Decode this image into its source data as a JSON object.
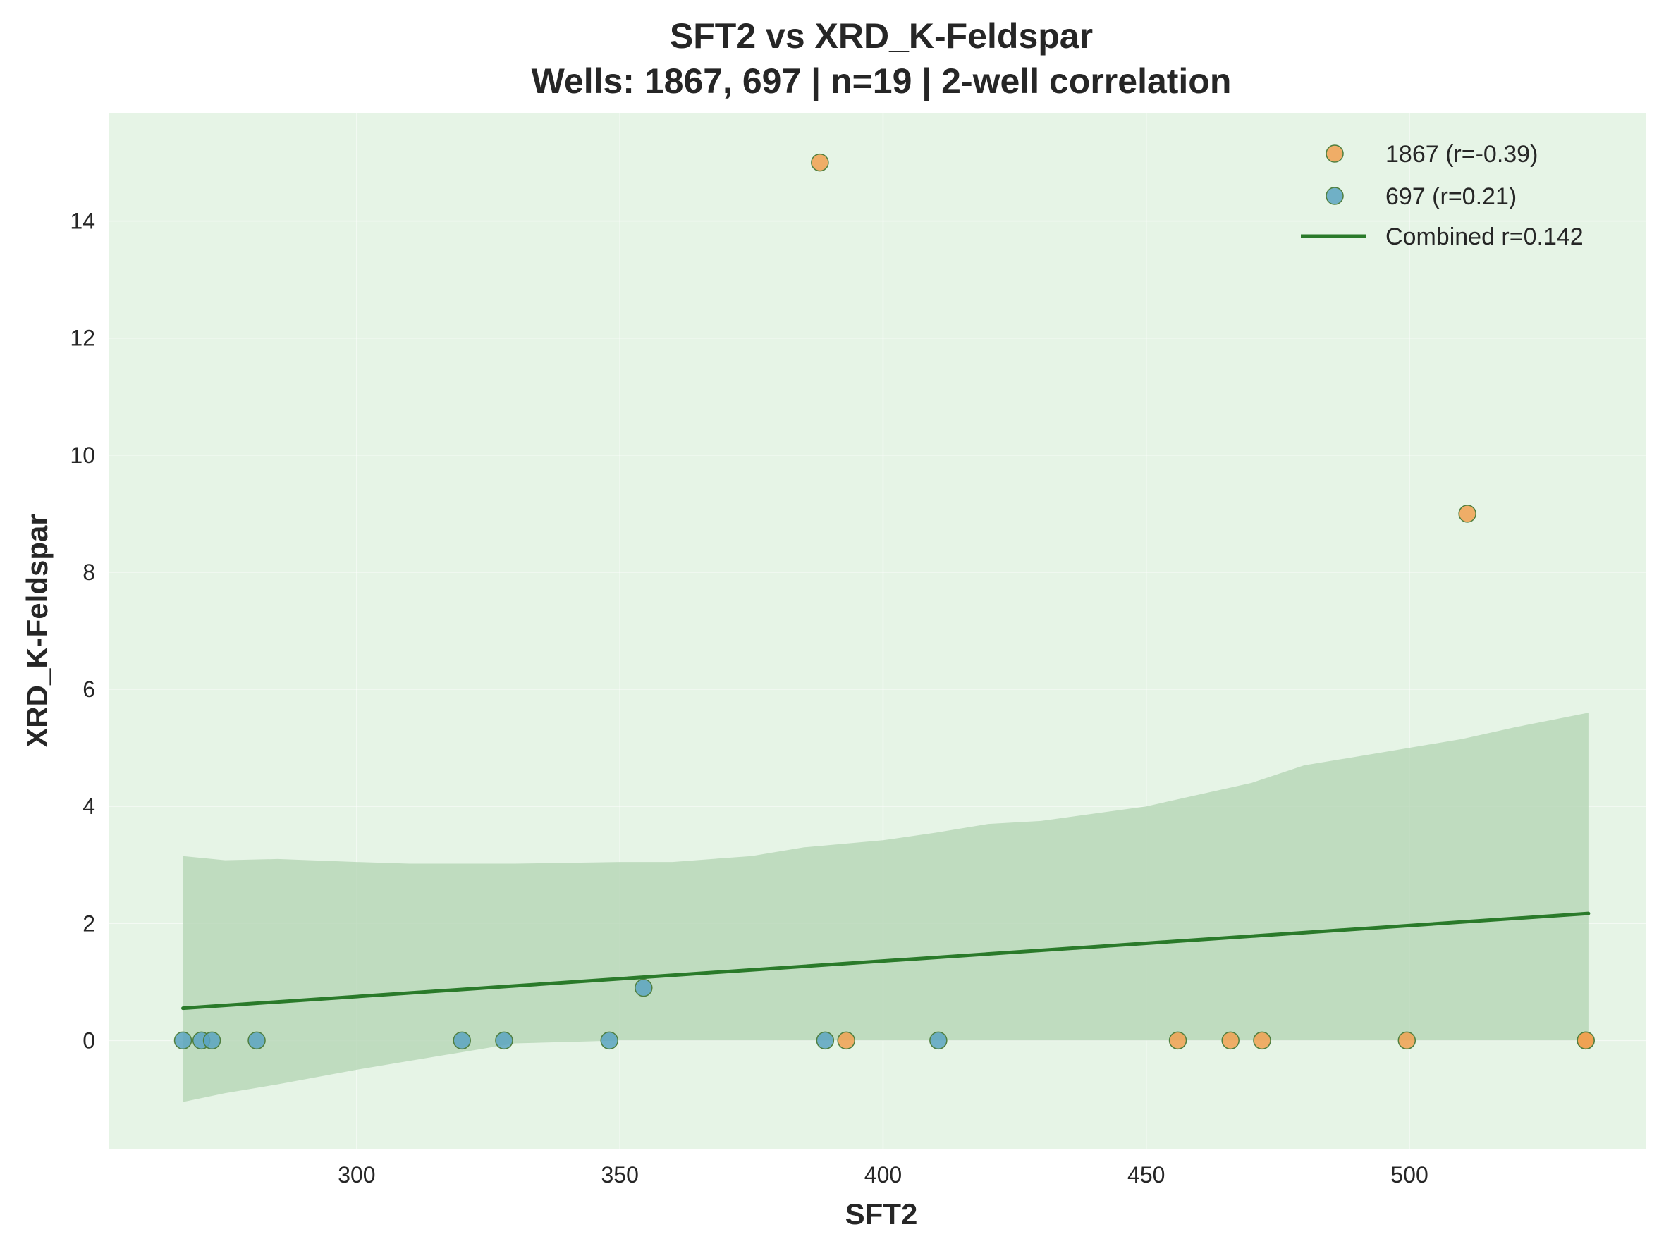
{
  "chart_data": {
    "type": "scatter",
    "title_line1": "SFT2 vs XRD_K-Feldspar",
    "title_line2": "Wells: 1867, 697 | n=19 | 2-well correlation",
    "xlabel": "SFT2",
    "ylabel": "XRD_K-Feldspar",
    "xlim": [
      253,
      545
    ],
    "ylim": [
      -1.85,
      15.85
    ],
    "xticks": [
      300,
      350,
      400,
      450,
      500
    ],
    "yticks": [
      0,
      2,
      4,
      6,
      8,
      10,
      12,
      14
    ],
    "grid": true,
    "legend_position": "top-right",
    "series": [
      {
        "name": "1867 (r=-0.39)",
        "color": "#f0a050",
        "x": [
          388,
          393,
          456,
          466,
          472,
          499.5,
          511,
          533.5,
          533.5
        ],
        "y": [
          15,
          0,
          0,
          0,
          0,
          0,
          9,
          0,
          0
        ]
      },
      {
        "name": "697 (r=0.21)",
        "color": "#5ba3c0",
        "x": [
          267,
          270.5,
          272.5,
          281,
          320,
          328,
          348,
          354.5,
          389,
          410.5
        ],
        "y": [
          0,
          0,
          0,
          0,
          0,
          0,
          0,
          0.9,
          0,
          0
        ]
      }
    ],
    "fit_line": {
      "name": "Combined r=0.142",
      "color": "#2a7a2a",
      "x": [
        267,
        534
      ],
      "y": [
        0.55,
        2.17
      ]
    },
    "confidence_band": {
      "color": "#b5d6b5",
      "x": [
        267,
        275,
        285,
        300,
        310,
        330,
        350,
        360,
        375,
        385,
        400,
        410,
        420,
        430,
        450,
        460,
        470,
        480,
        490,
        500,
        510,
        520,
        534
      ],
      "upper": [
        3.15,
        3.08,
        3.1,
        3.05,
        3.02,
        3.02,
        3.05,
        3.05,
        3.15,
        3.3,
        3.42,
        3.55,
        3.7,
        3.75,
        4.0,
        4.2,
        4.4,
        4.7,
        4.85,
        5.0,
        5.15,
        5.35,
        5.6
      ],
      "lower": [
        -1.05,
        -0.9,
        -0.75,
        -0.5,
        -0.35,
        -0.05,
        0,
        0,
        0,
        0,
        0,
        0,
        0,
        0,
        0,
        0,
        0,
        0,
        0,
        0,
        0,
        0,
        0
      ]
    },
    "colors": {
      "plot_background": "#e6f4e6",
      "marker_edge": "#4f7f3f",
      "text": "#262626"
    }
  }
}
